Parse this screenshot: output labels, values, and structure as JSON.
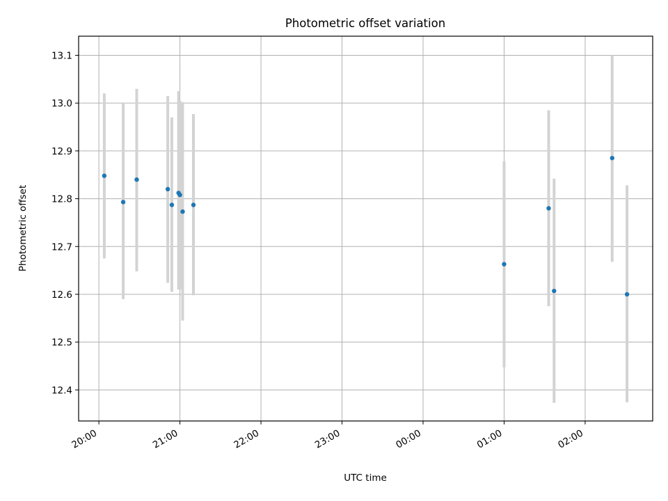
{
  "chart_data": {
    "type": "scatter",
    "title": "Photometric offset variation",
    "xlabel": "UTC time",
    "ylabel": "Photometric offset",
    "grid": true,
    "x_axis_kind": "time",
    "xlim": [
      "19:45",
      "02:50"
    ],
    "ylim": [
      12.335,
      13.14
    ],
    "x_ticks": [
      "20:00",
      "21:00",
      "22:00",
      "23:00",
      "00:00",
      "01:00",
      "02:00"
    ],
    "y_ticks": [
      12.4,
      12.5,
      12.6,
      12.7,
      12.8,
      12.9,
      13.0,
      13.1
    ],
    "point_color": "#1f77b4",
    "error_color": "#d3d3d3",
    "points": [
      {
        "time": "20:04",
        "y": 12.848,
        "ylow": 12.675,
        "yhigh": 13.02
      },
      {
        "time": "20:18",
        "y": 12.793,
        "ylow": 12.59,
        "yhigh": 13.0
      },
      {
        "time": "20:28",
        "y": 12.84,
        "ylow": 12.648,
        "yhigh": 13.03
      },
      {
        "time": "20:51",
        "y": 12.82,
        "ylow": 12.624,
        "yhigh": 13.015
      },
      {
        "time": "20:54",
        "y": 12.787,
        "ylow": 12.605,
        "yhigh": 12.97
      },
      {
        "time": "20:59",
        "y": 12.812,
        "ylow": 12.61,
        "yhigh": 13.025
      },
      {
        "time": "21:00",
        "y": 12.808,
        "ylow": 12.61,
        "yhigh": 13.005
      },
      {
        "time": "21:02",
        "y": 12.773,
        "ylow": 12.545,
        "yhigh": 13.002
      },
      {
        "time": "21:10",
        "y": 12.787,
        "ylow": 12.598,
        "yhigh": 12.977
      },
      {
        "time": "01:00",
        "y": 12.663,
        "ylow": 12.447,
        "yhigh": 12.878
      },
      {
        "time": "01:33",
        "y": 12.78,
        "ylow": 12.575,
        "yhigh": 12.985
      },
      {
        "time": "01:37",
        "y": 12.607,
        "ylow": 12.373,
        "yhigh": 12.842
      },
      {
        "time": "02:20",
        "y": 12.885,
        "ylow": 12.668,
        "yhigh": 13.1
      },
      {
        "time": "02:31",
        "y": 12.6,
        "ylow": 12.374,
        "yhigh": 12.828
      }
    ]
  }
}
